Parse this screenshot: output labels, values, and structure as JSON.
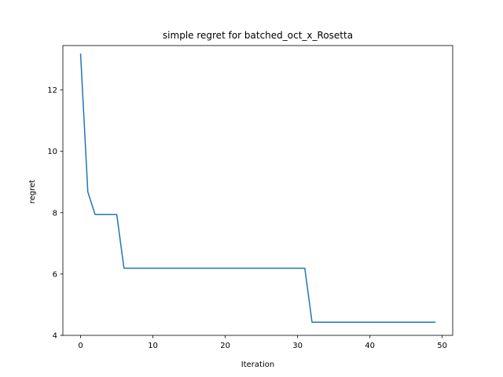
{
  "chart_data": {
    "type": "line",
    "title": "simple regret for batched_oct_x_Rosetta",
    "xlabel": "Iteration",
    "ylabel": "regret",
    "xlim": [
      -2.45,
      51.45
    ],
    "ylim": [
      4.0,
      13.45
    ],
    "x_ticks": [
      0,
      10,
      20,
      30,
      40,
      50
    ],
    "y_ticks": [
      4,
      6,
      8,
      10,
      12
    ],
    "x_tick_labels": [
      "0",
      "10",
      "20",
      "30",
      "40",
      "50"
    ],
    "y_tick_labels": [
      "4",
      "6",
      "8",
      "10",
      "12"
    ],
    "grid": false,
    "legend": "none",
    "series": [
      {
        "color": "#1f77b4",
        "x": [
          0,
          1,
          2,
          3,
          4,
          5,
          6,
          7,
          8,
          9,
          10,
          11,
          12,
          13,
          14,
          15,
          16,
          17,
          18,
          19,
          20,
          21,
          22,
          23,
          24,
          25,
          26,
          27,
          28,
          29,
          30,
          31,
          32,
          33,
          34,
          35,
          36,
          37,
          38,
          39,
          40,
          41,
          42,
          43,
          44,
          45,
          46,
          47,
          48,
          49
        ],
        "y": [
          13.17,
          8.68,
          7.94,
          7.94,
          7.94,
          7.94,
          6.19,
          6.19,
          6.19,
          6.19,
          6.19,
          6.19,
          6.19,
          6.19,
          6.19,
          6.19,
          6.19,
          6.19,
          6.19,
          6.19,
          6.19,
          6.19,
          6.19,
          6.19,
          6.19,
          6.19,
          6.19,
          6.19,
          6.19,
          6.19,
          6.19,
          6.19,
          4.43,
          4.43,
          4.43,
          4.43,
          4.43,
          4.43,
          4.43,
          4.43,
          4.43,
          4.43,
          4.43,
          4.43,
          4.43,
          4.43,
          4.43,
          4.43,
          4.43,
          4.43
        ]
      }
    ]
  }
}
